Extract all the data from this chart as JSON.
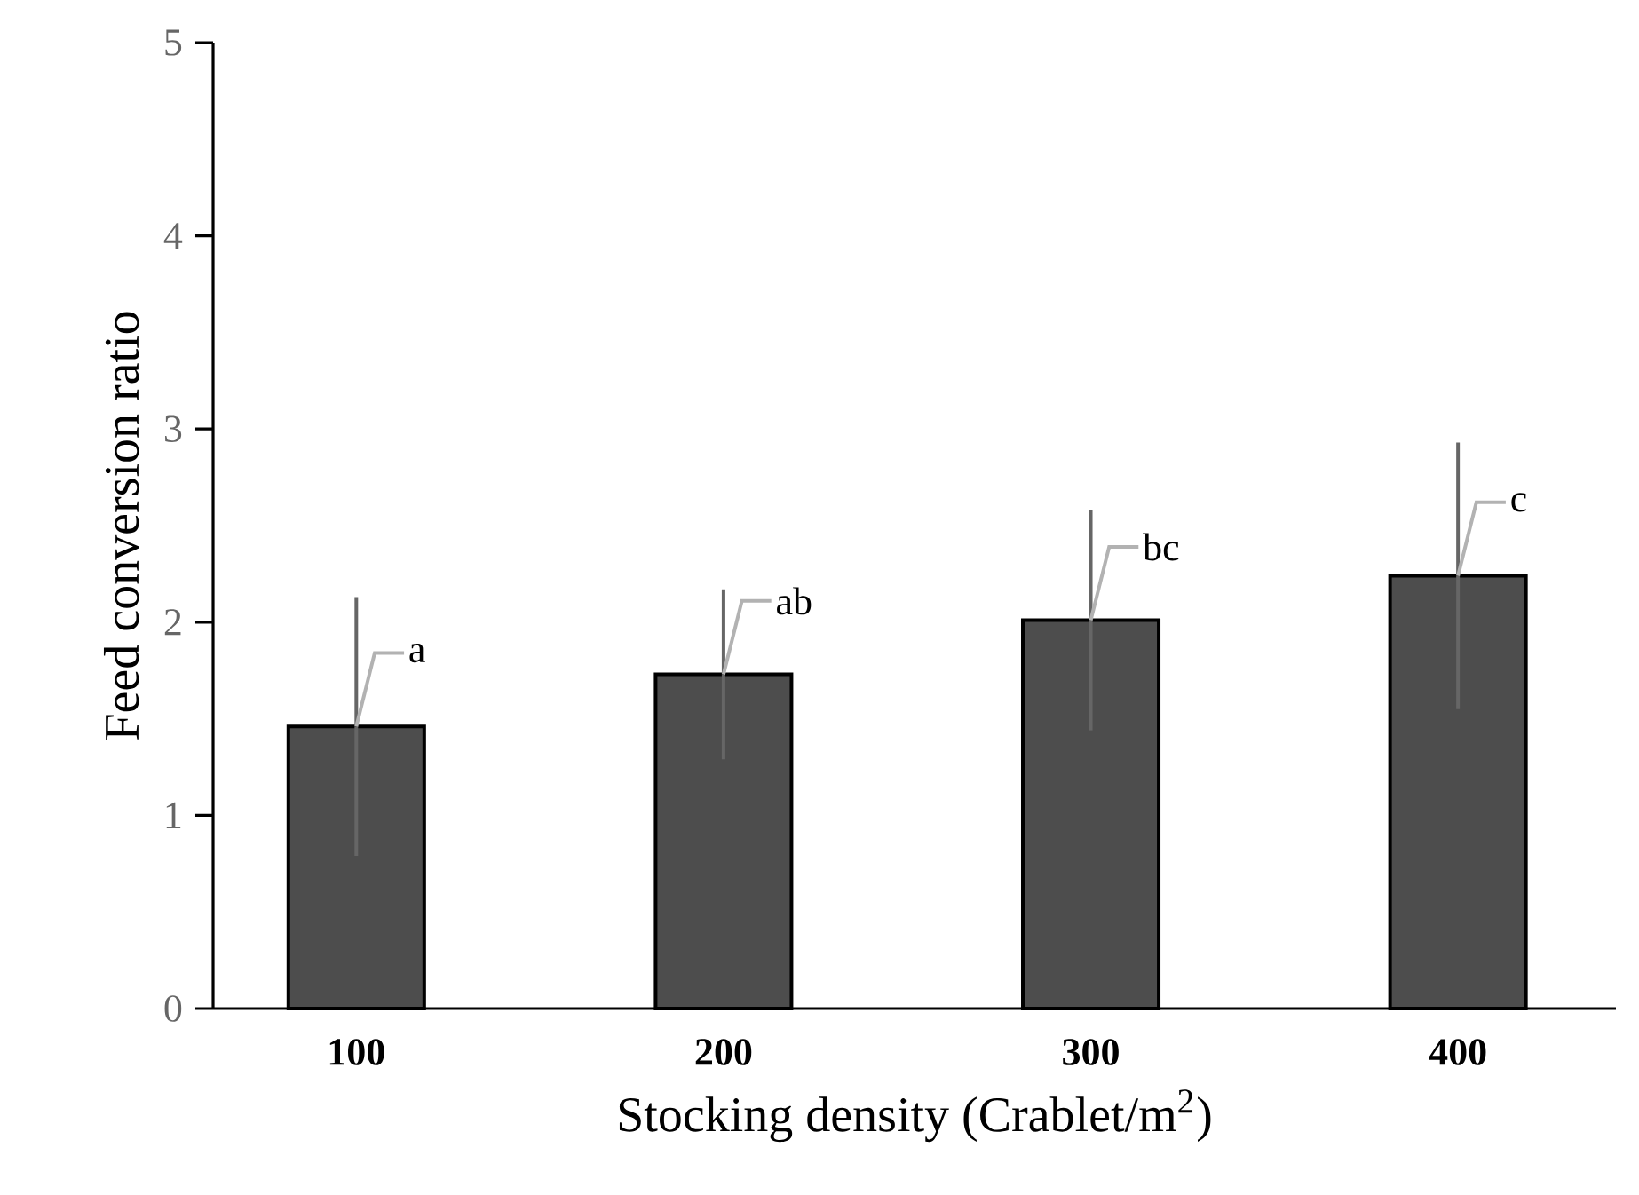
{
  "chart_data": {
    "type": "bar",
    "xlabel": "Stocking density (Crablet/m$^{2}$)",
    "ylabel": "Feed conversion ratio",
    "categories": [
      "100",
      "200",
      "300",
      "400"
    ],
    "values": [
      1.46,
      1.73,
      2.01,
      2.24
    ],
    "errors": [
      0.67,
      0.44,
      0.57,
      0.69
    ],
    "color": "#4d4d4d",
    "ylim": [
      0,
      5
    ],
    "yticks": [
      0,
      1,
      2,
      3,
      4,
      5
    ],
    "grid": false,
    "annotations": [
      {
        "text": "a",
        "x": "100",
        "y": 1.46
      },
      {
        "text": "ab",
        "x": "200",
        "y": 1.73
      },
      {
        "text": "bc",
        "x": "300",
        "y": 2.01
      },
      {
        "text": "c",
        "x": "400",
        "y": 2.24
      }
    ]
  }
}
